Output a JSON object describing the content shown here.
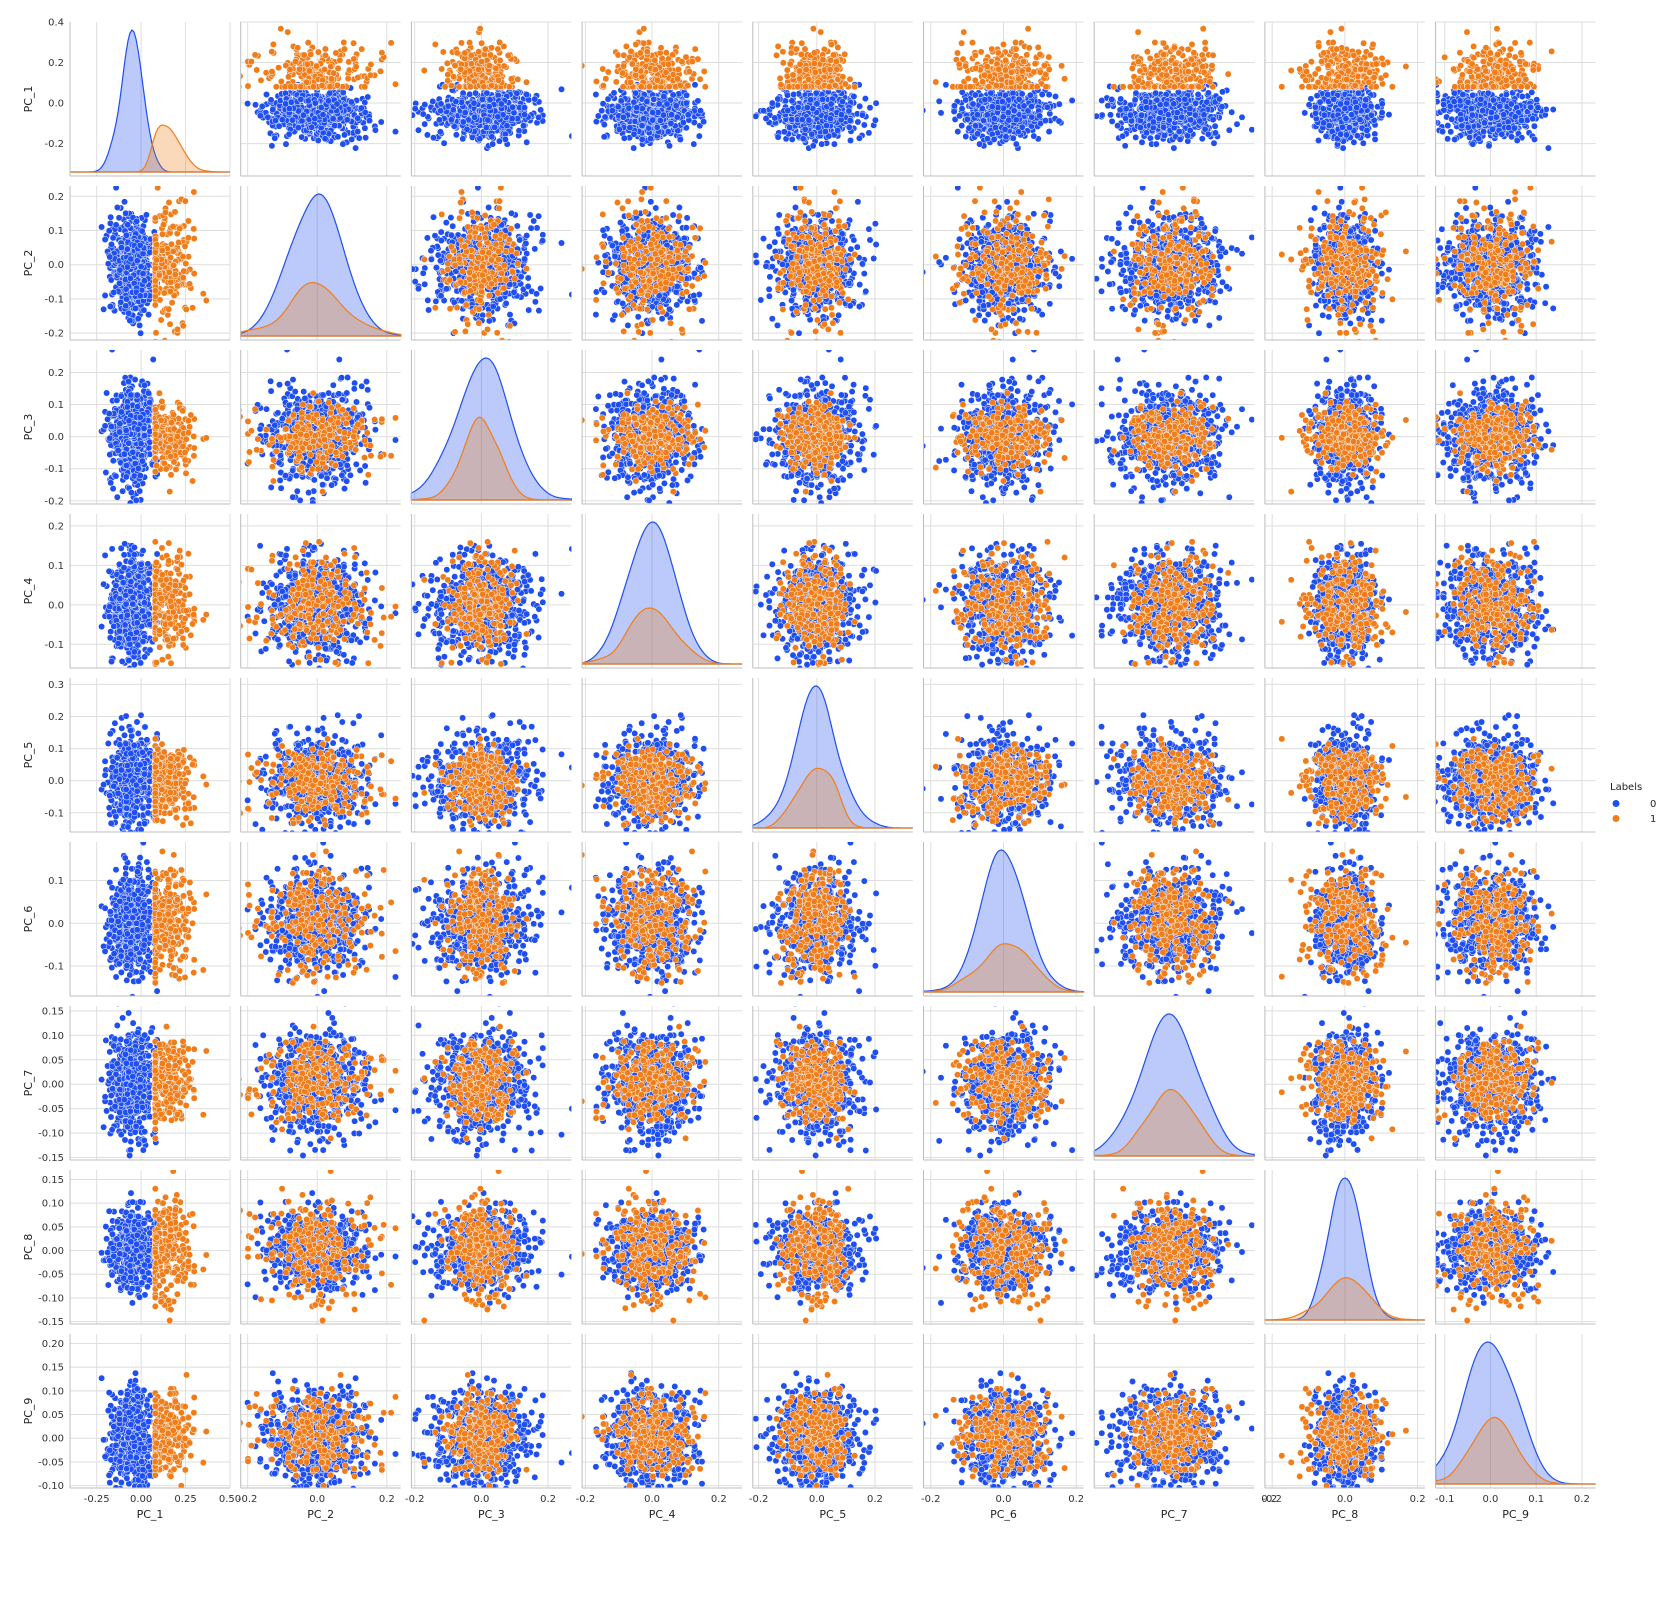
{
  "chart_data": {
    "type": "scatter",
    "subtype": "pairplot",
    "variables": [
      "PC_1",
      "PC_2",
      "PC_3",
      "PC_4",
      "PC_5",
      "PC_6",
      "PC_7",
      "PC_8",
      "PC_9"
    ],
    "ranges": [
      [
        -0.4,
        0.5
      ],
      [
        -0.22,
        0.24
      ],
      [
        -0.21,
        0.27
      ],
      [
        -0.21,
        0.27
      ],
      [
        -0.22,
        0.33
      ],
      [
        -0.22,
        0.22
      ],
      [
        -0.15,
        0.17
      ],
      [
        -0.22,
        0.22
      ],
      [
        -0.12,
        0.23
      ]
    ],
    "y_ranges": [
      [
        -0.36,
        0.4
      ],
      [
        -0.22,
        0.23
      ],
      [
        -0.21,
        0.27
      ],
      [
        -0.16,
        0.23
      ],
      [
        -0.16,
        0.32
      ],
      [
        -0.17,
        0.19
      ],
      [
        -0.155,
        0.16
      ],
      [
        -0.155,
        0.17
      ],
      [
        -0.105,
        0.22
      ]
    ],
    "x_ticks": [
      [
        "-0.25",
        "0.00",
        "0.25",
        "0.50"
      ],
      [
        "-0.2",
        "0.0",
        "0.2"
      ],
      [
        "-0.2",
        "0.0",
        "0.2"
      ],
      [
        "-0.2",
        "0.0",
        "0.2"
      ],
      [
        "-0.2",
        "0.0",
        "0.2"
      ],
      [
        "-0.2",
        "0.0",
        "0.2"
      ],
      [
        "0.2"
      ],
      [
        "-0.2",
        "0.0",
        "0.2"
      ],
      [
        "-0.1",
        "0.0",
        "0.1",
        "0.2"
      ]
    ],
    "y_ticks": [
      [
        "-0.2",
        "0.0",
        "0.2",
        "0.4"
      ],
      [
        "-0.2",
        "-0.1",
        "0.0",
        "0.1",
        "0.2"
      ],
      [
        "-0.2",
        "-0.1",
        "0.0",
        "0.1",
        "0.2"
      ],
      [
        "-0.1",
        "0.0",
        "0.1",
        "0.2"
      ],
      [
        "-0.1",
        "0.0",
        "0.1",
        "0.2",
        "0.3"
      ],
      [
        "-0.1",
        "0.0",
        "0.1"
      ],
      [
        "-0.15",
        "-0.10",
        "-0.05",
        "0.00",
        "0.05",
        "0.10",
        "0.15"
      ],
      [
        "-0.15",
        "-0.10",
        "-0.05",
        "0.00",
        "0.05",
        "0.10",
        "0.15"
      ],
      [
        "-0.10",
        "-0.05",
        "0.00",
        "0.05",
        "0.10",
        "0.15",
        "0.20"
      ]
    ],
    "groups": [
      {
        "label": "0",
        "color": "#1f4ff0",
        "n": 620,
        "mean": [
          -0.05,
          0.0,
          0.0,
          0.0,
          0.0,
          0.0,
          0.0,
          0.0,
          0.0
        ],
        "sd": [
          0.06,
          0.075,
          0.075,
          0.065,
          0.07,
          0.055,
          0.055,
          0.04,
          0.05
        ]
      },
      {
        "label": "1",
        "color": "#f07d1a",
        "n": 240,
        "mean": [
          0.16,
          0.0,
          0.0,
          0.0,
          0.0,
          0.0,
          0.0,
          0.0,
          0.0
        ],
        "sd": [
          0.075,
          0.075,
          0.05,
          0.06,
          0.05,
          0.06,
          0.045,
          0.055,
          0.045
        ]
      }
    ],
    "legend": {
      "title": "Labels",
      "entries": [
        "0",
        "1"
      ],
      "placement": "right"
    },
    "grid": true,
    "diagonal": "kde"
  }
}
